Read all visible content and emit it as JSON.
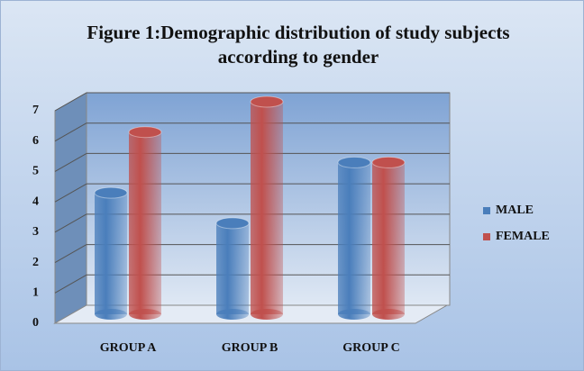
{
  "chart_data": {
    "type": "bar3d",
    "title": "Figure 1:Demographic distribution of study subjects according to gender",
    "categories": [
      "GROUP A",
      "GROUP B",
      "GROUP C"
    ],
    "series": [
      {
        "name": "MALE",
        "color": "#4a7ebb",
        "values": [
          4,
          3,
          5
        ]
      },
      {
        "name": "FEMALE",
        "color": "#c0504d",
        "values": [
          6,
          7,
          5
        ]
      }
    ],
    "ylim": [
      0,
      7
    ],
    "yticks": [
      0,
      1,
      2,
      3,
      4,
      5,
      6,
      7
    ],
    "grid": true,
    "legend": "right"
  }
}
